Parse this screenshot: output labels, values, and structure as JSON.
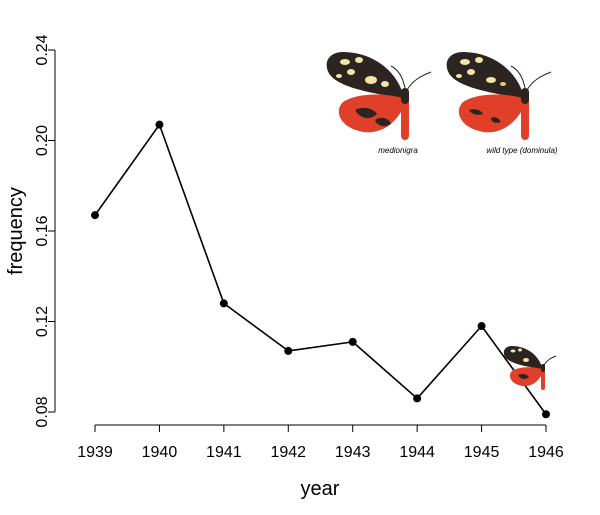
{
  "chart_data": {
    "type": "line",
    "x": [
      1939,
      1940,
      1941,
      1942,
      1943,
      1944,
      1945,
      1946
    ],
    "series": [
      {
        "values": [
          0.167,
          0.207,
          0.128,
          0.107,
          0.111,
          0.086,
          0.118,
          0.079
        ]
      }
    ],
    "xlabel": "year",
    "ylabel": "frequency",
    "xlim": [
      1939,
      1946
    ],
    "ylim": [
      0.08,
      0.24
    ],
    "yticks": [
      "0.08",
      "0.12",
      "0.16",
      "0.20",
      "0.24"
    ],
    "xticks": [
      "1939",
      "1940",
      "1941",
      "1942",
      "1943",
      "1944",
      "1945",
      "1946"
    ],
    "grid": false,
    "annotations": [
      {
        "label": "medionigra",
        "icon": "moth-medionigra"
      },
      {
        "label": "wild type (dominula)",
        "icon": "moth-wild-type"
      }
    ],
    "extra_icon": "small-moth",
    "colors": {
      "line": "#000000",
      "point": "#000000",
      "moth_forewing": "#2b2420",
      "moth_hindwing": "#e0402a",
      "moth_spot": "#f2e6a6"
    }
  }
}
